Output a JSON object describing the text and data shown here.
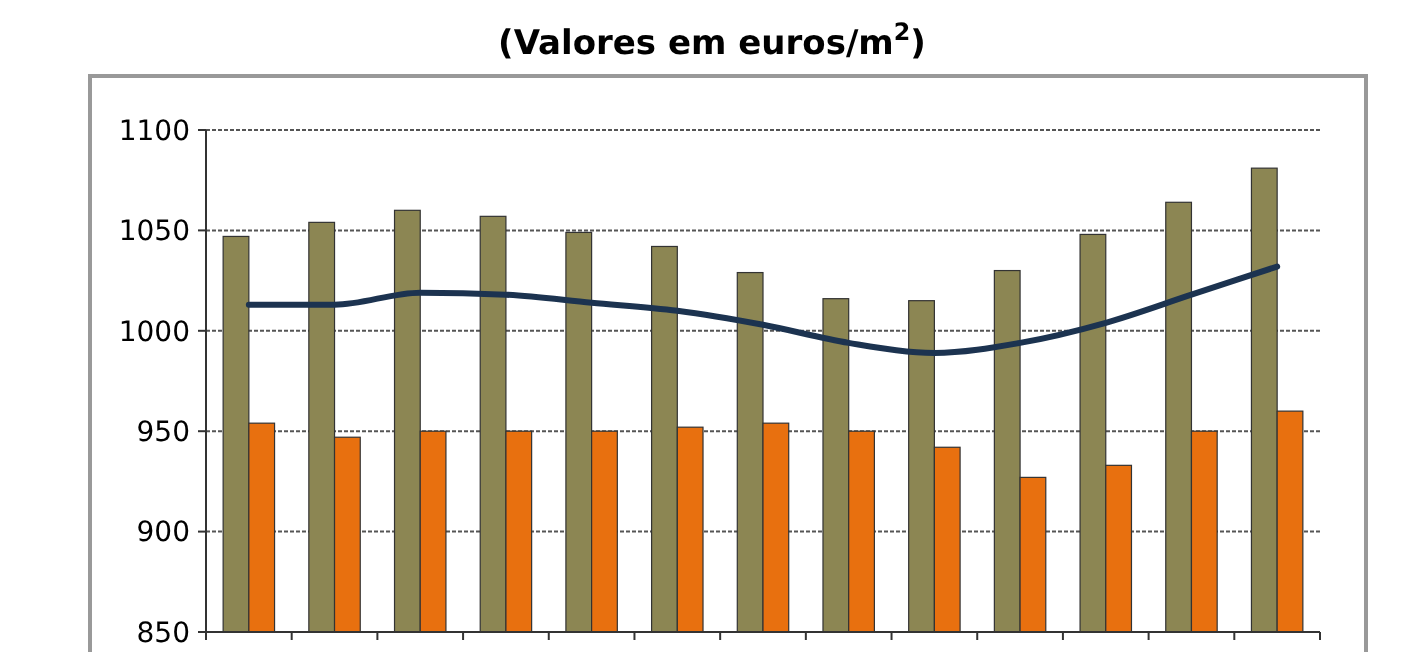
{
  "chart_data": {
    "type": "bar",
    "title": "(Valores em euros/m$^{2}$)",
    "categories": [
      null,
      null,
      null,
      null,
      null,
      null,
      null,
      null,
      null,
      null,
      null,
      null,
      null
    ],
    "series": [
      {
        "color": "#8c8653",
        "values": [
          1047,
          1054,
          1060,
          1057,
          1049,
          1042,
          1029,
          1016,
          1015,
          1030,
          1048,
          1064,
          1081
        ]
      },
      {
        "color": "#e8700f",
        "values": [
          954,
          947,
          950,
          950,
          950,
          952,
          954,
          950,
          942,
          927,
          933,
          950,
          960
        ]
      },
      {
        "type": "line",
        "color": "#1c3350",
        "values": [
          1013,
          1013,
          1019,
          1018,
          1014,
          1010,
          1003,
          994,
          989,
          994,
          1004,
          1018,
          1032
        ]
      }
    ],
    "ylim": [
      850,
      1100
    ],
    "yticks": [
      850,
      900,
      950,
      1000,
      1050,
      1100
    ],
    "grid": "y"
  }
}
